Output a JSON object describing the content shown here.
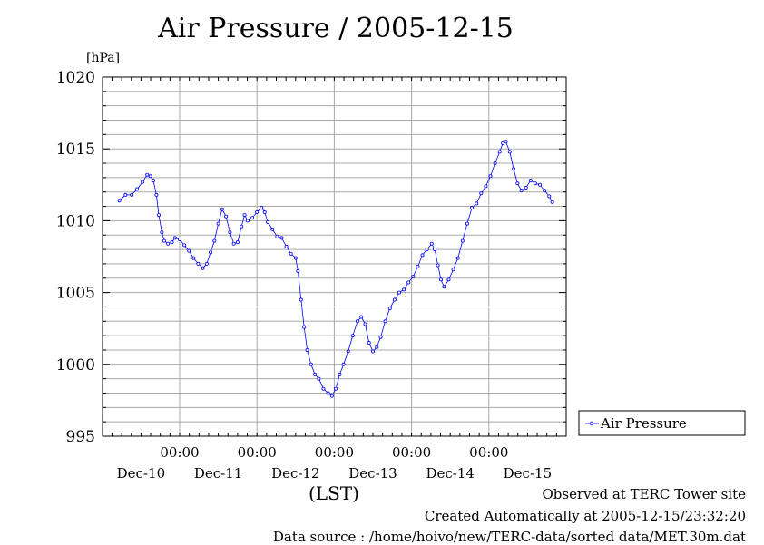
{
  "chart_data": {
    "type": "line",
    "title": "Air Pressure / 2005-12-15",
    "ylabel": "[hPa]",
    "xlabel": "(LST)",
    "ylim": [
      995,
      1020
    ],
    "yticks": [
      1020,
      1015,
      1010,
      1005,
      1000,
      995
    ],
    "x_tick_labels": [
      "00:00",
      "00:00",
      "00:00",
      "00:00",
      "00:00"
    ],
    "date_labels": [
      "Dec-10",
      "Dec-11",
      "Dec-12",
      "Dec-13",
      "Dec-14",
      "Dec-15"
    ],
    "legend": "right",
    "grid": true,
    "series": [
      {
        "name": "Air Pressure",
        "color": "#0000ff",
        "points": [
          [
            -0.78,
            1011.4
          ],
          [
            -0.7,
            1011.8
          ],
          [
            -0.62,
            1011.8
          ],
          [
            -0.55,
            1012.2
          ],
          [
            -0.48,
            1012.7
          ],
          [
            -0.42,
            1013.2
          ],
          [
            -0.38,
            1013.1
          ],
          [
            -0.34,
            1012.8
          ],
          [
            -0.3,
            1011.8
          ],
          [
            -0.27,
            1010.4
          ],
          [
            -0.23,
            1009.2
          ],
          [
            -0.2,
            1008.6
          ],
          [
            -0.15,
            1008.4
          ],
          [
            -0.1,
            1008.5
          ],
          [
            -0.06,
            1008.8
          ],
          [
            0.0,
            1008.7
          ],
          [
            0.06,
            1008.3
          ],
          [
            0.12,
            1007.9
          ],
          [
            0.18,
            1007.4
          ],
          [
            0.24,
            1007.0
          ],
          [
            0.3,
            1006.7
          ],
          [
            0.35,
            1007.0
          ],
          [
            0.4,
            1007.8
          ],
          [
            0.45,
            1008.6
          ],
          [
            0.5,
            1009.8
          ],
          [
            0.55,
            1010.8
          ],
          [
            0.6,
            1010.3
          ],
          [
            0.65,
            1009.2
          ],
          [
            0.7,
            1008.4
          ],
          [
            0.75,
            1008.5
          ],
          [
            0.8,
            1009.6
          ],
          [
            0.84,
            1010.4
          ],
          [
            0.88,
            1010.0
          ],
          [
            0.94,
            1010.2
          ],
          [
            1.0,
            1010.6
          ],
          [
            1.06,
            1010.9
          ],
          [
            1.1,
            1010.6
          ],
          [
            1.14,
            1009.9
          ],
          [
            1.2,
            1009.4
          ],
          [
            1.26,
            1008.9
          ],
          [
            1.32,
            1008.8
          ],
          [
            1.38,
            1008.2
          ],
          [
            1.44,
            1007.7
          ],
          [
            1.5,
            1007.4
          ],
          [
            1.53,
            1006.5
          ],
          [
            1.57,
            1004.5
          ],
          [
            1.61,
            1002.6
          ],
          [
            1.65,
            1001.0
          ],
          [
            1.7,
            1000.0
          ],
          [
            1.75,
            999.3
          ],
          [
            1.8,
            999.0
          ],
          [
            1.86,
            998.3
          ],
          [
            1.92,
            998.0
          ],
          [
            1.97,
            997.8
          ],
          [
            2.02,
            998.3
          ],
          [
            2.07,
            999.3
          ],
          [
            2.12,
            1000.0
          ],
          [
            2.18,
            1000.9
          ],
          [
            2.24,
            1002.0
          ],
          [
            2.3,
            1003.0
          ],
          [
            2.35,
            1003.3
          ],
          [
            2.4,
            1002.8
          ],
          [
            2.45,
            1001.5
          ],
          [
            2.5,
            1000.9
          ],
          [
            2.55,
            1001.2
          ],
          [
            2.6,
            1001.9
          ],
          [
            2.66,
            1003.0
          ],
          [
            2.72,
            1003.9
          ],
          [
            2.78,
            1004.5
          ],
          [
            2.84,
            1005.0
          ],
          [
            2.9,
            1005.2
          ],
          [
            2.96,
            1005.7
          ],
          [
            3.02,
            1006.1
          ],
          [
            3.08,
            1006.8
          ],
          [
            3.14,
            1007.6
          ],
          [
            3.2,
            1008.0
          ],
          [
            3.26,
            1008.4
          ],
          [
            3.3,
            1008.0
          ],
          [
            3.34,
            1006.9
          ],
          [
            3.38,
            1005.9
          ],
          [
            3.42,
            1005.4
          ],
          [
            3.48,
            1005.9
          ],
          [
            3.54,
            1006.6
          ],
          [
            3.6,
            1007.4
          ],
          [
            3.66,
            1008.6
          ],
          [
            3.72,
            1009.8
          ],
          [
            3.78,
            1010.9
          ],
          [
            3.84,
            1011.2
          ],
          [
            3.9,
            1011.9
          ],
          [
            3.96,
            1012.4
          ],
          [
            4.02,
            1013.1
          ],
          [
            4.08,
            1014.0
          ],
          [
            4.14,
            1014.8
          ],
          [
            4.18,
            1015.4
          ],
          [
            4.22,
            1015.5
          ],
          [
            4.27,
            1014.8
          ],
          [
            4.32,
            1013.6
          ],
          [
            4.37,
            1012.6
          ],
          [
            4.42,
            1012.1
          ],
          [
            4.48,
            1012.3
          ],
          [
            4.54,
            1012.8
          ],
          [
            4.6,
            1012.6
          ],
          [
            4.66,
            1012.5
          ],
          [
            4.72,
            1012.1
          ],
          [
            4.78,
            1011.7
          ],
          [
            4.82,
            1011.3
          ]
        ]
      }
    ]
  },
  "footer": {
    "site": "Observed at TERC Tower site",
    "created": "Created Automatically at 2005-12-15/23:32:20",
    "source": "Data source : /home/hoivo/new/TERC-data/sorted  data/MET.30m.dat"
  }
}
